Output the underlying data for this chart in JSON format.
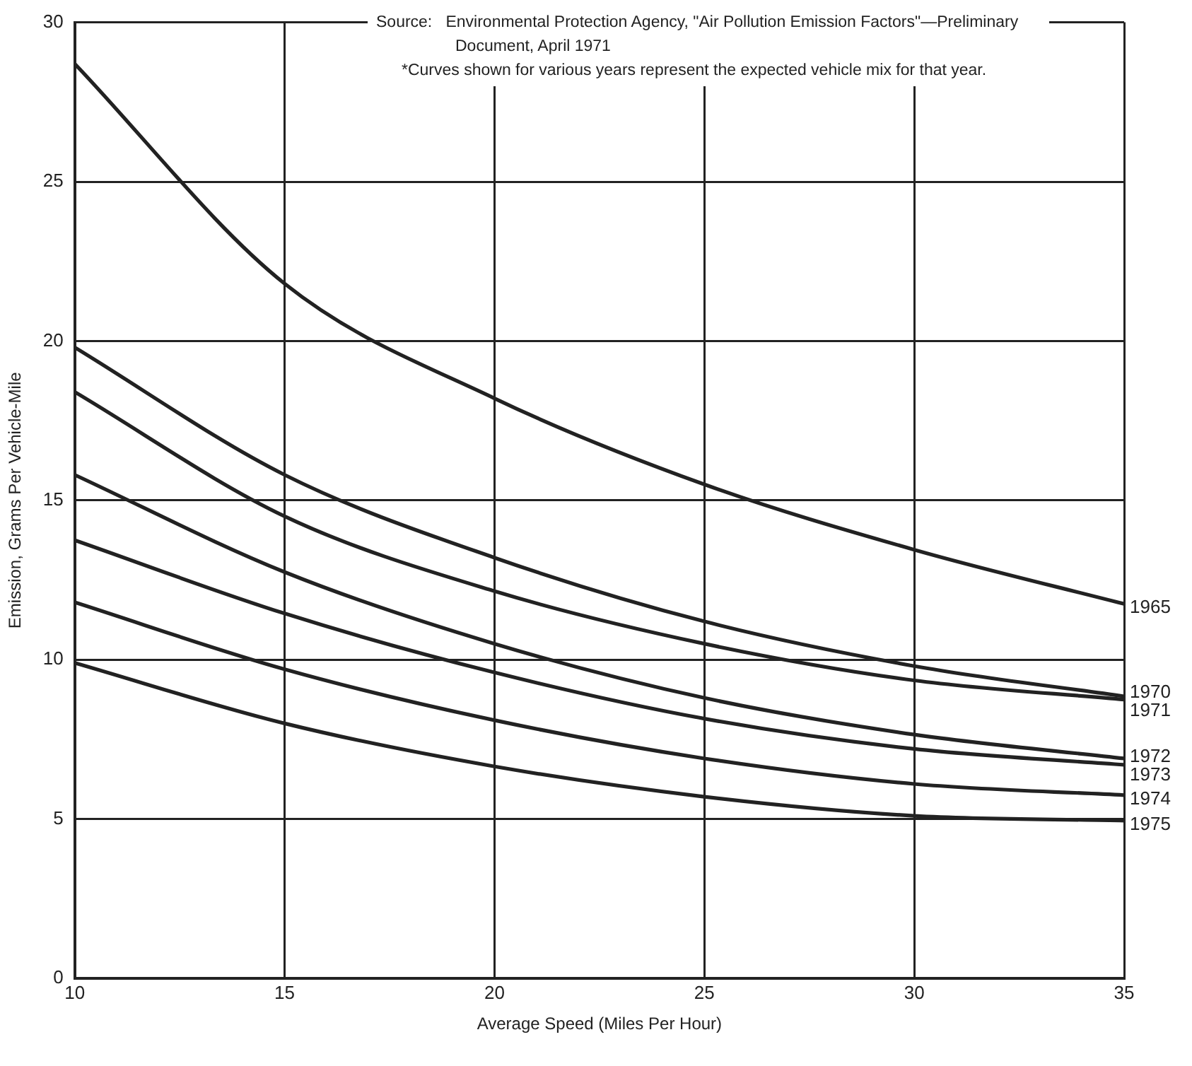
{
  "chart_data": {
    "type": "line",
    "xlabel": "Average Speed (Miles Per Hour)",
    "ylabel": "Emission, Grams Per Vehicle-Mile",
    "annotations": [
      "Source:   Environmental Protection Agency, \"Air Pollution Emission Factors\"—Preliminary Document, April 1971",
      "*Curves shown for various years represent the expected vehicle mix for that year."
    ],
    "x": [
      10,
      15,
      20,
      25,
      30,
      35
    ],
    "series": [
      {
        "name": "1965",
        "color": "#222222",
        "values": [
          28.7,
          21.8,
          18.2,
          15.5,
          13.45,
          11.75
        ]
      },
      {
        "name": "1970",
        "color": "#222222",
        "values": [
          19.8,
          15.8,
          13.2,
          11.2,
          9.8,
          8.85
        ]
      },
      {
        "name": "1971",
        "color": "#222222",
        "values": [
          18.4,
          14.5,
          12.15,
          10.5,
          9.35,
          8.75
        ]
      },
      {
        "name": "1972",
        "color": "#222222",
        "values": [
          15.8,
          12.75,
          10.5,
          8.8,
          7.65,
          6.9
        ]
      },
      {
        "name": "1973",
        "color": "#222222",
        "values": [
          13.75,
          11.45,
          9.6,
          8.15,
          7.2,
          6.7
        ]
      },
      {
        "name": "1974",
        "color": "#222222",
        "values": [
          11.8,
          9.7,
          8.1,
          6.9,
          6.1,
          5.75
        ]
      },
      {
        "name": "1975",
        "color": "#222222",
        "values": [
          9.9,
          8.0,
          6.65,
          5.7,
          5.1,
          4.95
        ]
      }
    ],
    "xlim": [
      10,
      35
    ],
    "xticks": [
      10,
      15,
      20,
      25,
      30,
      35
    ],
    "ylim": [
      0,
      30
    ],
    "yticks": [
      0,
      5,
      10,
      15,
      20,
      25,
      30
    ],
    "grid": true,
    "legend": "right",
    "marker": "none",
    "line_style": "solid"
  }
}
